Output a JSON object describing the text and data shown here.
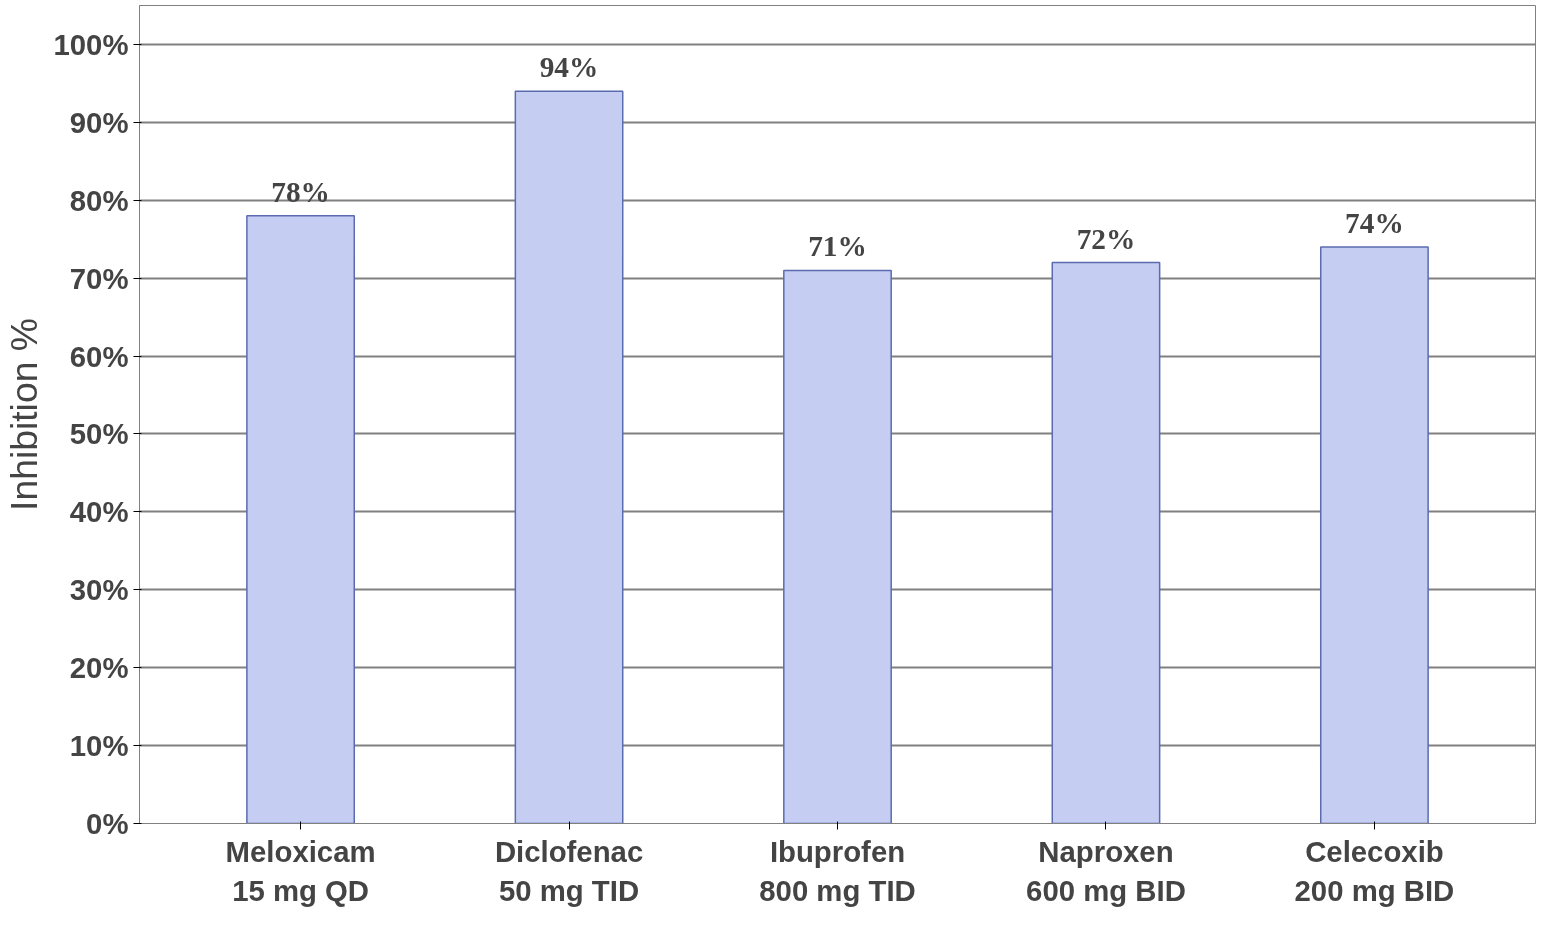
{
  "chart_data": {
    "type": "bar",
    "ylabel": "Inhibition %",
    "categories": [
      "Meloxicam\n15 mg QD",
      "Diclofenac\n50 mg TID",
      "Ibuprofen\n800 mg TID",
      "Naproxen\n600 mg BID",
      "Celecoxib\n200 mg BID"
    ],
    "values": [
      78,
      94,
      71,
      72,
      74
    ],
    "value_labels": [
      "78%",
      "94%",
      "71%",
      "72%",
      "74%"
    ],
    "color": "#c5cdf3",
    "ylim": [
      0,
      105
    ],
    "yticks": [
      {
        "value": 0,
        "label": "0%"
      },
      {
        "value": 10,
        "label": "10%"
      },
      {
        "value": 20,
        "label": "20%"
      },
      {
        "value": 30,
        "label": "30%"
      },
      {
        "value": 40,
        "label": "40%"
      },
      {
        "value": 50,
        "label": "50%"
      },
      {
        "value": 60,
        "label": "60%"
      },
      {
        "value": 70,
        "label": "70%"
      },
      {
        "value": 80,
        "label": "80%"
      },
      {
        "value": 90,
        "label": "90%"
      },
      {
        "value": 100,
        "label": "100%"
      }
    ],
    "grid": "y"
  }
}
